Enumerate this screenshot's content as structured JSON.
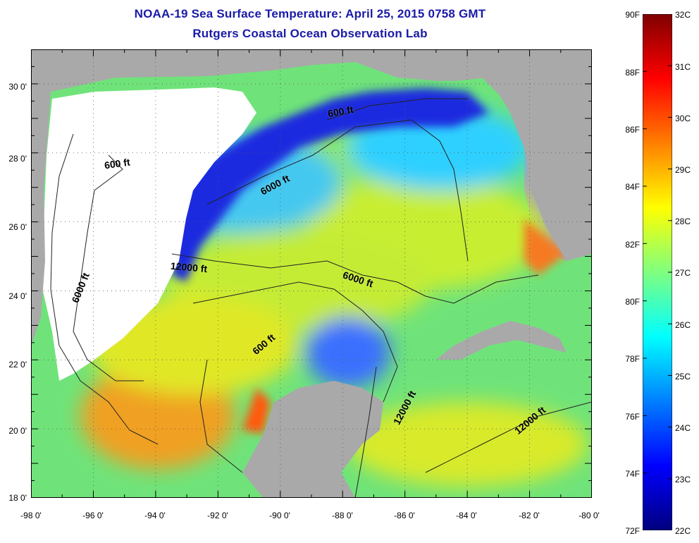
{
  "title_line1": "NOAA-19 Sea Surface Temperature:  April 25, 2015 0758 GMT",
  "title_line2": "Rutgers Coastal Ocean Observation Lab",
  "axes": {
    "lon_labels": [
      "-98 0'",
      "-96 0'",
      "-94 0'",
      "-92 0'",
      "-90 0'",
      "-88 0'",
      "-86 0'",
      "-84 0'",
      "-82 0'",
      "-80 0'"
    ],
    "lat_labels": [
      "30 0'",
      "28 0'",
      "26 0'",
      "24 0'",
      "22 0'",
      "20 0'",
      "18 0'"
    ],
    "lon_range": [
      -98,
      -80
    ],
    "lat_range": [
      18,
      31
    ]
  },
  "contour_labels": [
    "600 ft",
    "600 ft",
    "6000 ft",
    "12000 ft",
    "6000 ft",
    "6000 ft",
    "600 ft",
    "12000 ft",
    "12000 ft"
  ],
  "colorbar": {
    "fahrenheit_labels": [
      "90F",
      "88F",
      "86F",
      "84F",
      "82F",
      "80F",
      "78F",
      "76F",
      "74F",
      "72F"
    ],
    "celsius_labels": [
      "32C",
      "31C",
      "30C",
      "29C",
      "28C",
      "27C",
      "26C",
      "25C",
      "24C",
      "23C",
      "22C"
    ],
    "colors": [
      "#00007f",
      "#0000ff",
      "#007fff",
      "#00ffff",
      "#7fff7f",
      "#ffff00",
      "#ff7f00",
      "#ff0000",
      "#7f0000"
    ]
  },
  "colors": {
    "land": "#a9a9a9",
    "cloud": "#ffffff",
    "title": "#1a1aa8"
  }
}
